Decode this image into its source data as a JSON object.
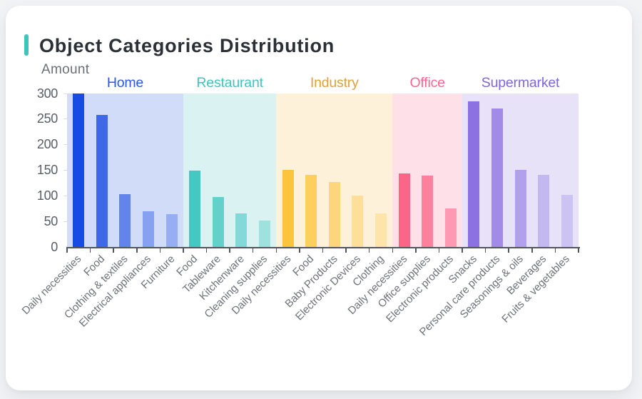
{
  "page": {
    "background_color": "#f2f3f5",
    "card_color": "#ffffff"
  },
  "title_block": {
    "accent_color": "#3ec4bf",
    "title_color": "#2b2f36"
  },
  "axes": {
    "axis_line_color": "#51565e",
    "y_label_color": "#595e66",
    "x_label_color": "#6e7278",
    "y_axis_name_color": "#6b7077",
    "y_minor_tick_color": "#d9dce2"
  },
  "chart_data": {
    "type": "bar",
    "title": "Object Categories Distribution",
    "ylabel": "Amount",
    "xlabel": "",
    "ylim": [
      0,
      300
    ],
    "y_ticks": [
      0,
      50,
      100,
      150,
      200,
      250,
      300
    ],
    "grid": false,
    "legend_position": "none",
    "group_header_position": "top",
    "groups": [
      {
        "name": "Home",
        "label_color": "#2d56ea",
        "band_color": "#d0dcf8",
        "items": [
          {
            "label": "Daily necessities",
            "value": 300,
            "color": "#174be3"
          },
          {
            "label": "Food",
            "value": 258,
            "color": "#3f68e8"
          },
          {
            "label": "Clothing & textiles",
            "value": 103,
            "color": "#6284ec"
          },
          {
            "label": "Electrical appliances",
            "value": 70,
            "color": "#86a1f1"
          },
          {
            "label": "Furniture",
            "value": 64,
            "color": "#97aff2"
          }
        ]
      },
      {
        "name": "Restaurant",
        "label_color": "#3ec6bd",
        "band_color": "#daf2f1",
        "items": [
          {
            "label": "Food",
            "value": 149,
            "color": "#45c8c1"
          },
          {
            "label": "Tableware",
            "value": 98,
            "color": "#63d1ca"
          },
          {
            "label": "Kitchenware",
            "value": 66,
            "color": "#81dad7"
          },
          {
            "label": "Cleaning supplies",
            "value": 52,
            "color": "#9ee2de"
          }
        ]
      },
      {
        "name": "Industry",
        "label_color": "#dfa23b",
        "band_color": "#fdf2d9",
        "items": [
          {
            "label": "Daily necessities",
            "value": 151,
            "color": "#fcc43d"
          },
          {
            "label": "Food",
            "value": 140,
            "color": "#fdcf5c"
          },
          {
            "label": "Baby Products",
            "value": 127,
            "color": "#fdd67c"
          },
          {
            "label": "Electronic Devices",
            "value": 100,
            "color": "#fddf9a"
          },
          {
            "label": "Clothing",
            "value": 65,
            "color": "#fee4a9"
          }
        ]
      },
      {
        "name": "Office",
        "label_color": "#fc6590",
        "band_color": "#fee0e8",
        "items": [
          {
            "label": "Daily necessities",
            "value": 143,
            "color": "#fc6588"
          },
          {
            "label": "Office supplies",
            "value": 139,
            "color": "#fd819c"
          },
          {
            "label": "Electronic products",
            "value": 75,
            "color": "#fd99b2"
          }
        ]
      },
      {
        "name": "Supermarket",
        "label_color": "#7f66e0",
        "band_color": "#e7e2f8",
        "items": [
          {
            "label": "Snacks",
            "value": 284,
            "color": "#8c71e2"
          },
          {
            "label": "Personal care products",
            "value": 270,
            "color": "#a28ae8"
          },
          {
            "label": "Seasonings & oils",
            "value": 150,
            "color": "#b29fed"
          },
          {
            "label": "Beverages",
            "value": 141,
            "color": "#c4b8f1"
          },
          {
            "label": "Fruits & vegetables",
            "value": 101,
            "color": "#cdc3f2"
          }
        ]
      }
    ]
  }
}
